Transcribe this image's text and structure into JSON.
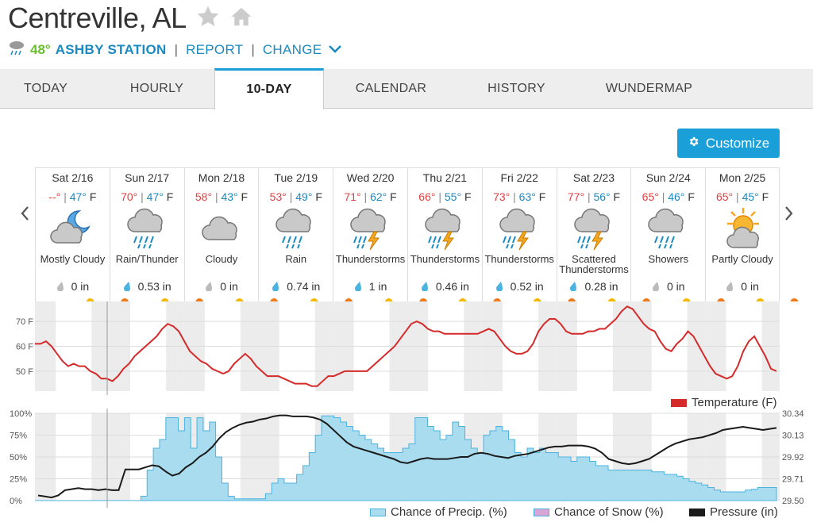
{
  "header": {
    "city": "Centreville, AL"
  },
  "station": {
    "temp": "48°",
    "name": "ASHBY STATION",
    "report": "REPORT",
    "change": "CHANGE"
  },
  "tabs": [
    "TODAY",
    "HOURLY",
    "10-DAY",
    "CALENDAR",
    "HISTORY",
    "WUNDERMAP"
  ],
  "active_tab": "10-DAY",
  "customize_label": "Customize",
  "days": [
    {
      "date": "Sat 2/16",
      "hi": "--°",
      "lo": "47°",
      "unit": "F",
      "cond": "Mostly Cloudy",
      "icon": "night-cloudy-icon",
      "precip": "0 in",
      "wet": false
    },
    {
      "date": "Sun 2/17",
      "hi": "70°",
      "lo": "47°",
      "unit": "F",
      "cond": "Rain/Thunder",
      "icon": "rain-icon",
      "precip": "0.53 in",
      "wet": true
    },
    {
      "date": "Mon 2/18",
      "hi": "58°",
      "lo": "43°",
      "unit": "F",
      "cond": "Cloudy",
      "icon": "cloud-icon",
      "precip": "0 in",
      "wet": false
    },
    {
      "date": "Tue 2/19",
      "hi": "53°",
      "lo": "49°",
      "unit": "F",
      "cond": "Rain",
      "icon": "rain-icon",
      "precip": "0.74 in",
      "wet": true
    },
    {
      "date": "Wed 2/20",
      "hi": "71°",
      "lo": "62°",
      "unit": "F",
      "cond": "Thunderstorms",
      "icon": "thunderstorm-icon",
      "precip": "1 in",
      "wet": true
    },
    {
      "date": "Thu 2/21",
      "hi": "66°",
      "lo": "55°",
      "unit": "F",
      "cond": "Thunderstorms",
      "icon": "thunderstorm-icon",
      "precip": "0.46 in",
      "wet": true
    },
    {
      "date": "Fri 2/22",
      "hi": "73°",
      "lo": "63°",
      "unit": "F",
      "cond": "Thunderstorms",
      "icon": "thunderstorm-icon",
      "precip": "0.52 in",
      "wet": true
    },
    {
      "date": "Sat 2/23",
      "hi": "77°",
      "lo": "56°",
      "unit": "F",
      "cond": "Scattered Thunderstorms",
      "icon": "thunderstorm-icon",
      "precip": "0.28 in",
      "wet": true
    },
    {
      "date": "Sun 2/24",
      "hi": "65°",
      "lo": "46°",
      "unit": "F",
      "cond": "Showers",
      "icon": "rain-icon",
      "precip": "0 in",
      "wet": false
    },
    {
      "date": "Mon 2/25",
      "hi": "65°",
      "lo": "45°",
      "unit": "F",
      "cond": "Partly Cloudy",
      "icon": "partly-cloudy-icon",
      "precip": "0 in",
      "wet": false
    }
  ],
  "colors": {
    "accent": "#1a9fd9",
    "hi": "#e04040",
    "lo": "#1a8ac0",
    "temp_line": "#d42a2a",
    "precip_fill": "#a9dcef",
    "precip_line": "#4ab3e0",
    "pressure": "#1a1a1a"
  },
  "chart_data": [
    {
      "type": "line",
      "series": [
        {
          "name": "Temperature (F)",
          "values": [
            61,
            61,
            62,
            60,
            57,
            54,
            52,
            53,
            52,
            52,
            50,
            49,
            47,
            47,
            46,
            48,
            51,
            53,
            56,
            58,
            60,
            62,
            64,
            67,
            69,
            68,
            66,
            62,
            58,
            56,
            54,
            53,
            51,
            50,
            49,
            50,
            53,
            55,
            57,
            55,
            52,
            50,
            48,
            48,
            48,
            47,
            46,
            45,
            45,
            45,
            44,
            44,
            46,
            48,
            48,
            49,
            50,
            50,
            50,
            50,
            50,
            52,
            54,
            56,
            58,
            60,
            63,
            66,
            69,
            70,
            69,
            67,
            66,
            66,
            65,
            65,
            65,
            65,
            65,
            65,
            65,
            66,
            67,
            66,
            63,
            60,
            58,
            57,
            57,
            58,
            61,
            66,
            69,
            71,
            71,
            69,
            66,
            65,
            65,
            65,
            66,
            66,
            67,
            67,
            69,
            71,
            74,
            76,
            75,
            72,
            69,
            67,
            66,
            62,
            59,
            58,
            61,
            63,
            66,
            64,
            60,
            56,
            52,
            49,
            48,
            47,
            48,
            52,
            58,
            62,
            64,
            60,
            56,
            51,
            50
          ]
        }
      ],
      "x_range": [
        "Sat 2/16",
        "Mon 2/25"
      ],
      "ylim": [
        42,
        78
      ],
      "ytick_labels": [
        "50 F",
        "60 F",
        "70 F"
      ],
      "legend": "Temperature (F)"
    },
    {
      "type": "area",
      "series": [
        {
          "name": "Chance of Precip. (%)",
          "values": [
            0,
            0,
            0,
            0,
            0,
            0,
            0,
            0,
            0,
            0,
            0,
            0,
            0,
            0,
            0,
            0,
            0,
            5,
            35,
            60,
            70,
            95,
            95,
            80,
            95,
            60,
            95,
            80,
            90,
            50,
            20,
            5,
            2,
            2,
            2,
            2,
            2,
            8,
            20,
            25,
            20,
            20,
            30,
            40,
            55,
            75,
            97,
            97,
            95,
            90,
            85,
            80,
            75,
            70,
            65,
            60,
            55,
            55,
            55,
            60,
            65,
            95,
            95,
            85,
            80,
            70,
            75,
            90,
            85,
            70,
            60,
            55,
            75,
            80,
            85,
            80,
            70,
            55,
            50,
            60,
            55,
            60,
            55,
            55,
            50,
            50,
            45,
            50,
            50,
            45,
            40,
            40,
            35,
            35,
            35,
            35,
            35,
            35,
            35,
            33,
            33,
            30,
            30,
            28,
            25,
            22,
            20,
            18,
            15,
            12,
            10,
            10,
            10,
            10,
            12,
            13,
            15,
            15,
            15,
            15
          ]
        },
        {
          "name": "Chance of Snow (%)",
          "values": []
        },
        {
          "name": "Pressure (in)",
          "values": [
            29.55,
            29.54,
            29.53,
            29.55,
            29.6,
            29.61,
            29.62,
            29.61,
            29.61,
            29.6,
            29.61,
            29.6,
            29.6,
            29.8,
            29.8,
            29.8,
            29.82,
            29.84,
            29.83,
            29.78,
            29.74,
            29.76,
            29.82,
            29.86,
            29.92,
            29.96,
            30.02,
            30.1,
            30.16,
            30.2,
            30.23,
            30.25,
            30.26,
            30.28,
            30.29,
            30.31,
            30.32,
            30.32,
            30.31,
            30.31,
            30.31,
            30.3,
            30.28,
            30.24,
            30.18,
            30.12,
            30.06,
            30.02,
            30.0,
            29.98,
            29.96,
            29.94,
            29.92,
            29.9,
            29.87,
            29.86,
            29.88,
            29.9,
            29.91,
            29.9,
            29.9,
            29.9,
            29.91,
            29.92,
            29.92,
            29.95,
            29.96,
            29.95,
            29.93,
            29.92,
            29.91,
            29.93,
            29.94,
            29.95,
            29.97,
            29.99,
            30.01,
            30.02,
            30.02,
            30.03,
            30.03,
            30.03,
            30.02,
            30.0,
            29.96,
            29.9,
            29.88,
            29.86,
            29.85,
            29.86,
            29.88,
            29.9,
            29.94,
            29.98,
            30.02,
            30.05,
            30.07,
            30.09,
            30.1,
            30.11,
            30.13,
            30.15,
            30.18,
            30.19,
            30.2,
            30.21,
            30.2,
            30.19,
            30.18,
            30.19,
            30.2
          ]
        }
      ],
      "y_left_ticks": [
        "0%",
        "25%",
        "50%",
        "75%",
        "100%"
      ],
      "y_right_ticks": [
        "29.50",
        "29.71",
        "29.92",
        "30.13",
        "30.34"
      ],
      "ylim_left": [
        0,
        100
      ],
      "ylim_right": [
        29.5,
        30.34
      ]
    }
  ]
}
